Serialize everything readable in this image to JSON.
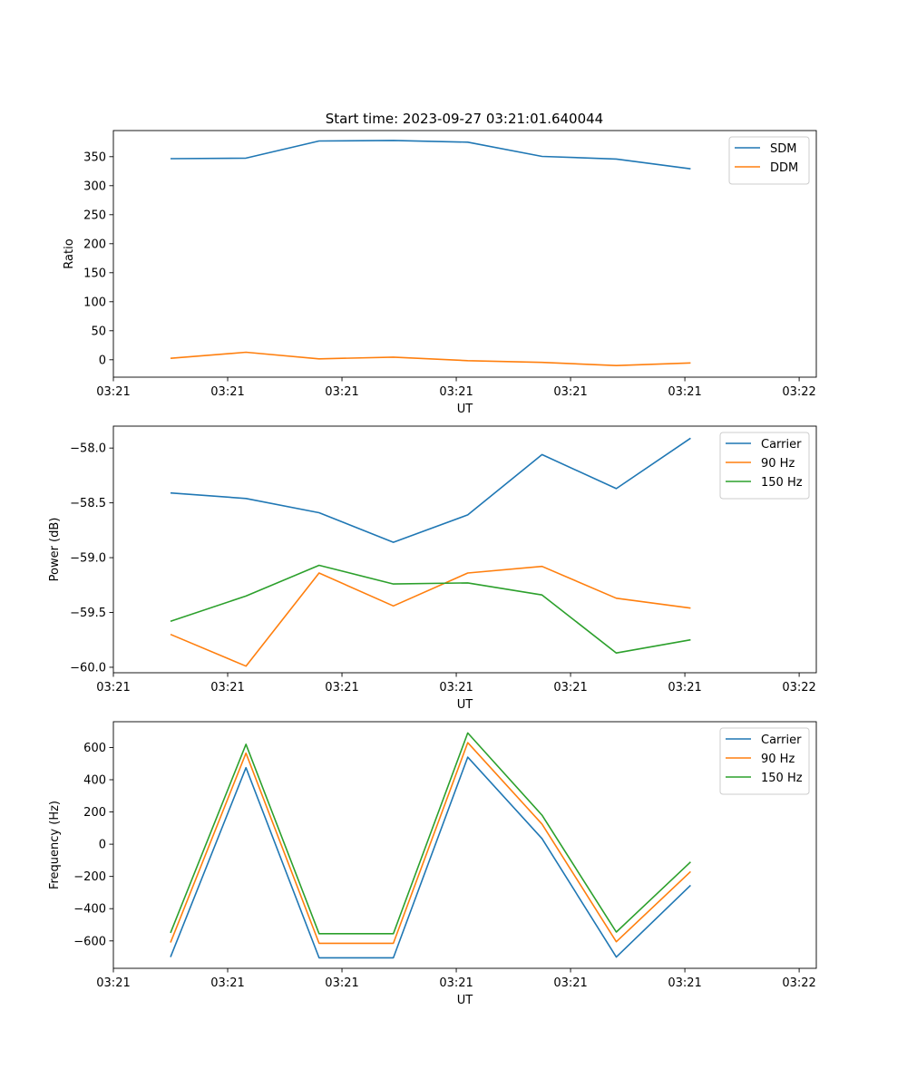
{
  "figure": {
    "title": "Start time: 2023-09-27 03:21:01.640044"
  },
  "colors": {
    "blue": "#1f77b4",
    "orange": "#ff7f0e",
    "green": "#2ca02c"
  },
  "chart_data": [
    {
      "type": "line",
      "title": "Start time: 2023-09-27 03:21:01.640044",
      "xlabel": "UT",
      "ylabel": "Ratio",
      "x_tick_labels": [
        "03:21",
        "03:21",
        "03:21",
        "03:21",
        "03:21",
        "03:21",
        "03:22"
      ],
      "yticks": [
        0,
        50,
        100,
        150,
        200,
        250,
        300,
        350
      ],
      "y_tick_labels": [
        "0",
        "50",
        "100",
        "150",
        "200",
        "250",
        "300",
        "350"
      ],
      "xlim": [
        0,
        6.15
      ],
      "ylim": [
        -30,
        395
      ],
      "x": [
        0.5,
        1.16,
        1.8,
        2.45,
        3.1,
        3.75,
        4.4,
        5.05
      ],
      "legend_location": "upper right",
      "series": [
        {
          "name": "SDM",
          "color": "#1f77b4",
          "values": [
            346.5,
            347.5,
            377,
            378,
            375,
            350.5,
            346,
            329
          ]
        },
        {
          "name": "DDM",
          "color": "#ff7f0e",
          "values": [
            2.5,
            13,
            1.5,
            4.5,
            -1.5,
            -4.5,
            -10,
            -5.5
          ]
        }
      ]
    },
    {
      "type": "line",
      "title": "",
      "xlabel": "UT",
      "ylabel": "Power (dB)",
      "x_tick_labels": [
        "03:21",
        "03:21",
        "03:21",
        "03:21",
        "03:21",
        "03:21",
        "03:22"
      ],
      "yticks": [
        -60.0,
        -59.5,
        -59.0,
        -58.5,
        -58.0
      ],
      "y_tick_labels": [
        "−60.0",
        "−59.5",
        "−59.0",
        "−58.5",
        "−58.0"
      ],
      "xlim": [
        0,
        6.15
      ],
      "ylim": [
        -60.05,
        -57.8
      ],
      "x": [
        0.5,
        1.16,
        1.8,
        2.45,
        3.1,
        3.75,
        4.4,
        5.05
      ],
      "legend_location": "upper right",
      "series": [
        {
          "name": "Carrier",
          "color": "#1f77b4",
          "values": [
            -58.41,
            -58.46,
            -58.59,
            -58.86,
            -58.61,
            -58.06,
            -58.37,
            -57.91
          ]
        },
        {
          "name": "90 Hz",
          "color": "#ff7f0e",
          "values": [
            -59.7,
            -59.99,
            -59.14,
            -59.44,
            -59.14,
            -59.08,
            -59.37,
            -59.46
          ]
        },
        {
          "name": "150 Hz",
          "color": "#2ca02c",
          "values": [
            -59.58,
            -59.35,
            -59.07,
            -59.24,
            -59.23,
            -59.34,
            -59.87,
            -59.75
          ]
        }
      ]
    },
    {
      "type": "line",
      "title": "",
      "xlabel": "UT",
      "ylabel": "Frequency (Hz)",
      "x_tick_labels": [
        "03:21",
        "03:21",
        "03:21",
        "03:21",
        "03:21",
        "03:21",
        "03:22"
      ],
      "yticks": [
        -600,
        -400,
        -200,
        0,
        200,
        400,
        600
      ],
      "y_tick_labels": [
        "−600",
        "−400",
        "−200",
        "0",
        "200",
        "400",
        "600"
      ],
      "xlim": [
        0,
        6.15
      ],
      "ylim": [
        -770,
        760
      ],
      "x": [
        0.5,
        1.16,
        1.8,
        2.45,
        3.1,
        3.75,
        4.4,
        5.05
      ],
      "legend_location": "upper right",
      "series": [
        {
          "name": "Carrier",
          "color": "#1f77b4",
          "values": [
            -700,
            475,
            -705,
            -705,
            540,
            35,
            -700,
            -255
          ]
        },
        {
          "name": "90 Hz",
          "color": "#ff7f0e",
          "values": [
            -610,
            565,
            -615,
            -615,
            630,
            125,
            -605,
            -170
          ]
        },
        {
          "name": "150 Hz",
          "color": "#2ca02c",
          "values": [
            -550,
            620,
            -555,
            -555,
            690,
            180,
            -545,
            -110
          ]
        }
      ]
    }
  ]
}
